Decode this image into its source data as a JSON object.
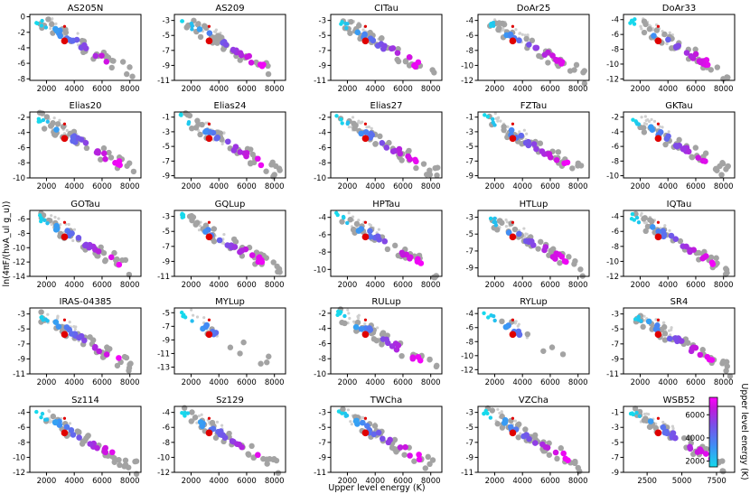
{
  "figure": {
    "xlabel": "Upper level energy (K)",
    "ylabel": "ln(4πF/(hνA_ul g_u))",
    "colorbar": {
      "label": "Upper level energy (K)",
      "ticks": [
        "2000",
        "4000",
        "6000"
      ],
      "range": [
        1500,
        7500
      ],
      "colors": [
        "#16d9ec",
        "#3f8ff5",
        "#7a4fe8",
        "#c417dc",
        "#ff00ff"
      ]
    }
  },
  "chart_data": [
    {
      "type": "scatter",
      "title": "AS205N",
      "xticks": [
        "2000",
        "4000",
        "6000",
        "8000"
      ],
      "yticks": [
        "0",
        "-2",
        "-4",
        "-6",
        "-8"
      ],
      "ylim": [
        -8.2,
        0.3
      ],
      "xlim": [
        800,
        8800
      ]
    },
    {
      "type": "scatter",
      "title": "AS209",
      "xticks": [
        "2000",
        "4000",
        "6000",
        "8000"
      ],
      "yticks": [
        "-3",
        "-5",
        "-7",
        "-9",
        "-11"
      ],
      "ylim": [
        -11,
        -2.2
      ],
      "xlim": [
        800,
        8800
      ]
    },
    {
      "type": "scatter",
      "title": "CITau",
      "xticks": [
        "2000",
        "4000",
        "6000",
        "8000"
      ],
      "yticks": [
        "-3",
        "-5",
        "-7",
        "-9",
        "-11"
      ],
      "ylim": [
        -11,
        -2.2
      ],
      "xlim": [
        800,
        8800
      ]
    },
    {
      "type": "scatter",
      "title": "DoAr25",
      "xticks": [
        "2000",
        "4000",
        "6000",
        "8000"
      ],
      "yticks": [
        "-4",
        "-6",
        "-8",
        "-10",
        "-12"
      ],
      "ylim": [
        -12,
        -3.2
      ],
      "xlim": [
        800,
        8800
      ]
    },
    {
      "type": "scatter",
      "title": "DoAr33",
      "xticks": [
        "2000",
        "4000",
        "6000",
        "8000"
      ],
      "yticks": [
        "-4",
        "-6",
        "-8",
        "-10",
        "-12"
      ],
      "ylim": [
        -12.2,
        -3.3
      ],
      "xlim": [
        800,
        8800
      ]
    },
    {
      "type": "scatter",
      "title": "Elias20",
      "xticks": [
        "2000",
        "4000",
        "6000",
        "8000"
      ],
      "yticks": [
        "-2",
        "-4",
        "-6",
        "-8",
        "-10"
      ],
      "ylim": [
        -10,
        -1.3
      ],
      "xlim": [
        800,
        8800
      ]
    },
    {
      "type": "scatter",
      "title": "Elias24",
      "xticks": [
        "2000",
        "4000",
        "6000",
        "8000"
      ],
      "yticks": [
        "-1",
        "-3",
        "-5",
        "-7",
        "-9"
      ],
      "ylim": [
        -9.3,
        -0.3
      ],
      "xlim": [
        800,
        8800
      ]
    },
    {
      "type": "scatter",
      "title": "Elias27",
      "xticks": [
        "2000",
        "4000",
        "6000",
        "8000"
      ],
      "yticks": [
        "-2",
        "-4",
        "-6",
        "-8",
        "-10"
      ],
      "ylim": [
        -10,
        -1.3
      ],
      "xlim": [
        800,
        8800
      ]
    },
    {
      "type": "scatter",
      "title": "FZTau",
      "xticks": [
        "2000",
        "4000",
        "6000",
        "8000"
      ],
      "yticks": [
        "-1",
        "-3",
        "-5",
        "-7",
        "-9"
      ],
      "ylim": [
        -9.3,
        -0.3
      ],
      "xlim": [
        800,
        8800
      ]
    },
    {
      "type": "scatter",
      "title": "GKTau",
      "xticks": [
        "2000",
        "4000",
        "6000",
        "8000"
      ],
      "yticks": [
        "-2",
        "-4",
        "-6",
        "-8",
        "-10"
      ],
      "ylim": [
        -10.3,
        -1.3
      ],
      "xlim": [
        800,
        8800
      ]
    },
    {
      "type": "scatter",
      "title": "GOTau",
      "xticks": [
        "2000",
        "4000",
        "6000",
        "8000"
      ],
      "yticks": [
        "-6",
        "-8",
        "-10",
        "-12",
        "-14"
      ],
      "ylim": [
        -14,
        -4.8
      ],
      "xlim": [
        800,
        8800
      ]
    },
    {
      "type": "scatter",
      "title": "GQLup",
      "xticks": [
        "2000",
        "4000",
        "6000",
        "8000"
      ],
      "yticks": [
        "-3",
        "-5",
        "-7",
        "-9",
        "-11"
      ],
      "ylim": [
        -11,
        -2.2
      ],
      "xlim": [
        800,
        8800
      ]
    },
    {
      "type": "scatter",
      "title": "HPTau",
      "xticks": [
        "2000",
        "4000",
        "6000",
        "8000"
      ],
      "yticks": [
        "-4",
        "-6",
        "-8",
        "-10"
      ],
      "ylim": [
        -10.8,
        -3.2
      ],
      "xlim": [
        800,
        8800
      ]
    },
    {
      "type": "scatter",
      "title": "HTLup",
      "xticks": [
        "2000",
        "4000",
        "6000",
        "8000"
      ],
      "yticks": [
        "-3",
        "-5",
        "-7",
        "-9"
      ],
      "ylim": [
        -10,
        -2.2
      ],
      "xlim": [
        800,
        8800
      ]
    },
    {
      "type": "scatter",
      "title": "IQTau",
      "xticks": [
        "2000",
        "4000",
        "6000",
        "8000"
      ],
      "yticks": [
        "-4",
        "-6",
        "-8",
        "-10",
        "-12"
      ],
      "ylim": [
        -12,
        -3.2
      ],
      "xlim": [
        800,
        8800
      ]
    },
    {
      "type": "scatter",
      "title": "IRAS-04385",
      "xticks": [
        "2000",
        "4000",
        "6000",
        "8000"
      ],
      "yticks": [
        "-3",
        "-5",
        "-7",
        "-9",
        "-11"
      ],
      "ylim": [
        -11,
        -2.2
      ],
      "xlim": [
        800,
        8800
      ]
    },
    {
      "type": "scatter",
      "title": "MYLup",
      "xticks": [
        "2000",
        "4000",
        "6000",
        "8000"
      ],
      "yticks": [
        "-5",
        "-7",
        "-9",
        "-11",
        "-13"
      ],
      "ylim": [
        -14,
        -4.3
      ],
      "xlim": [
        800,
        8800
      ]
    },
    {
      "type": "scatter",
      "title": "RULup",
      "xticks": [
        "2000",
        "4000",
        "6000",
        "8000"
      ],
      "yticks": [
        "-2",
        "-4",
        "-6",
        "-8",
        "-10"
      ],
      "ylim": [
        -10,
        -1.3
      ],
      "xlim": [
        800,
        8800
      ]
    },
    {
      "type": "scatter",
      "title": "RYLup",
      "xticks": [
        "2000",
        "4000",
        "6000",
        "8000"
      ],
      "yticks": [
        "-4",
        "-6",
        "-8",
        "-10",
        "-12"
      ],
      "ylim": [
        -12.6,
        -3.2
      ],
      "xlim": [
        800,
        8800
      ]
    },
    {
      "type": "scatter",
      "title": "SR4",
      "xticks": [
        "2000",
        "4000",
        "6000",
        "8000"
      ],
      "yticks": [
        "-3",
        "-5",
        "-7",
        "-9",
        "-11"
      ],
      "ylim": [
        -11,
        -2.2
      ],
      "xlim": [
        800,
        8800
      ]
    },
    {
      "type": "scatter",
      "title": "Sz114",
      "xticks": [
        "2000",
        "4000",
        "6000",
        "8000"
      ],
      "yticks": [
        "-4",
        "-6",
        "-8",
        "-10",
        "-12"
      ],
      "ylim": [
        -12,
        -3.2
      ],
      "xlim": [
        800,
        8800
      ]
    },
    {
      "type": "scatter",
      "title": "Sz129",
      "xticks": [
        "2000",
        "4000",
        "6000",
        "8000"
      ],
      "yticks": [
        "-4",
        "-6",
        "-8",
        "-10",
        "-12"
      ],
      "ylim": [
        -12,
        -3.2
      ],
      "xlim": [
        800,
        8800
      ]
    },
    {
      "type": "scatter",
      "title": "TWCha",
      "xticks": [
        "2000",
        "4000",
        "6000",
        "8000"
      ],
      "yticks": [
        "-3",
        "-5",
        "-7",
        "-9",
        "-11"
      ],
      "ylim": [
        -11,
        -2.2
      ],
      "xlim": [
        800,
        8800
      ]
    },
    {
      "type": "scatter",
      "title": "VZCha",
      "xticks": [
        "2000",
        "4000",
        "6000",
        "8000"
      ],
      "yticks": [
        "-3",
        "-5",
        "-7",
        "-9",
        "-11"
      ],
      "ylim": [
        -11,
        -2.2
      ],
      "xlim": [
        800,
        8800
      ]
    },
    {
      "type": "scatter",
      "title": "WSB52",
      "xticks": [
        "2500",
        "5000",
        "7500"
      ],
      "yticks": [
        "-1",
        "-3",
        "-5",
        "-7",
        "-9"
      ],
      "ylim": [
        -9,
        -0.2
      ],
      "xlim": [
        800,
        8800
      ]
    }
  ]
}
